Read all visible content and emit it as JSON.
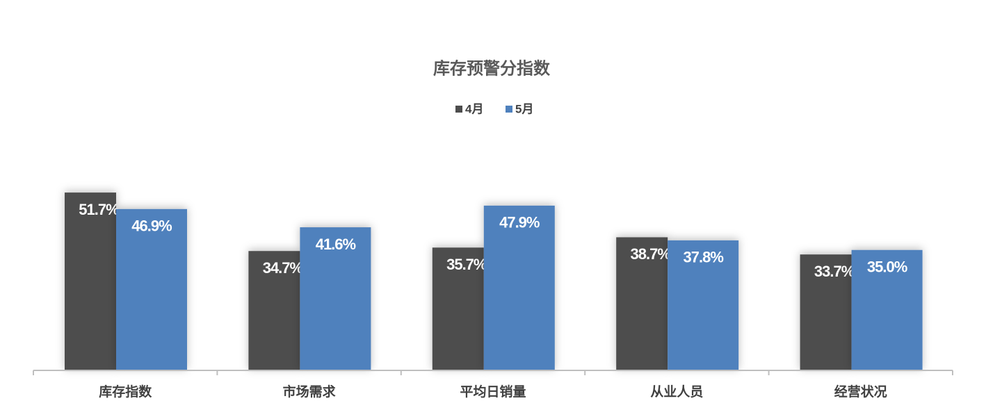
{
  "chart_data": {
    "type": "bar",
    "title": "库存预警分指数",
    "categories": [
      "库存指数",
      "市场需求",
      "平均日销量",
      "从业人员",
      "经营状况"
    ],
    "series": [
      {
        "name": "4月",
        "color": "#4d4d4d",
        "values": [
          51.7,
          34.7,
          35.7,
          38.7,
          33.7
        ],
        "value_labels": [
          "51.7%",
          "34.7%",
          "35.7%",
          "38.7%",
          "33.7%"
        ]
      },
      {
        "name": "5月",
        "color": "#4f81bd",
        "values": [
          46.9,
          41.6,
          47.9,
          37.8,
          35.0
        ],
        "value_labels": [
          "46.9%",
          "41.6%",
          "47.9%",
          "37.8%",
          "35.0%"
        ]
      }
    ],
    "ylim": [
      0,
      60
    ],
    "legend": "top"
  }
}
